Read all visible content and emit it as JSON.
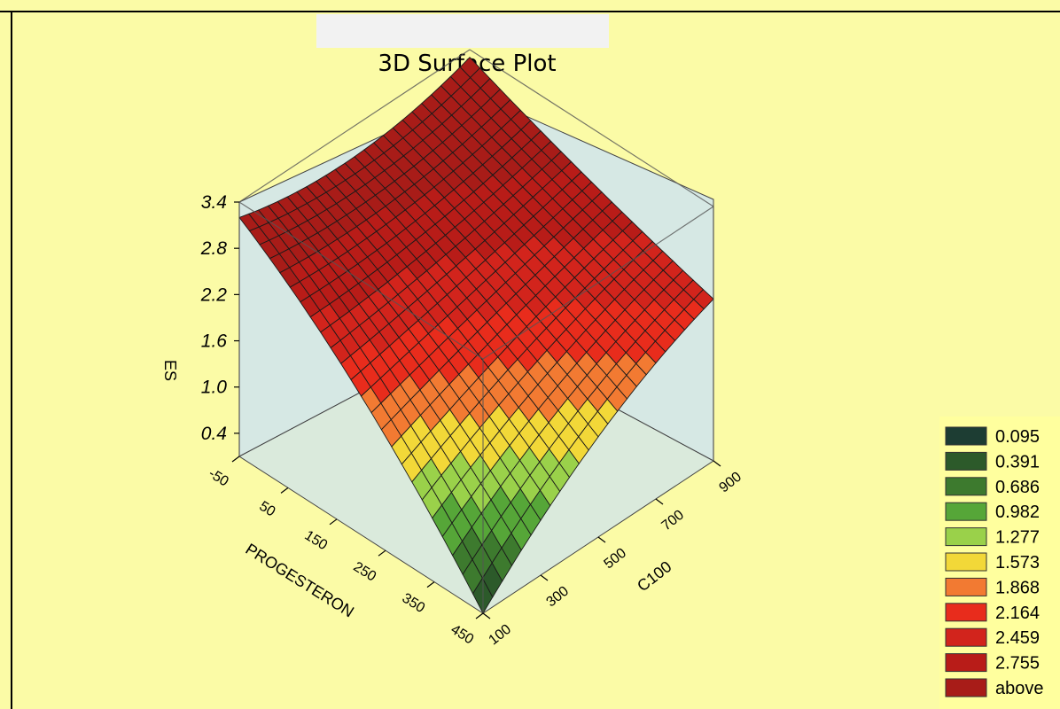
{
  "colors": {
    "background": "#fbfba6",
    "box_face": "#cfe4ee",
    "title_tab": "#f2f2f2",
    "legend_bg": "#ffff9e",
    "grid_line": "#1a1a1a"
  },
  "chart_data": {
    "type": "surface3d",
    "title": "3D Surface Plot",
    "xlabel": "PROGESTERON",
    "ylabel": "C100",
    "zlabel": "ES",
    "x_ticks": [
      "-50",
      "50",
      "150",
      "250",
      "350",
      "450"
    ],
    "y_ticks": [
      "100",
      "300",
      "500",
      "700",
      "900"
    ],
    "z_ticks": [
      "0.4",
      "1.0",
      "1.6",
      "2.2",
      "2.8",
      "3.4"
    ],
    "xlim": [
      -50,
      450
    ],
    "ylim": [
      100,
      900
    ],
    "zlim": [
      0.1,
      3.4
    ],
    "corner_values": [
      {
        "x": -50,
        "y": 100,
        "z": 3.2
      },
      {
        "x": -50,
        "y": 900,
        "z": 3.3
      },
      {
        "x": 450,
        "y": 900,
        "z": 2.2
      },
      {
        "x": 450,
        "y": 100,
        "z": 0.1
      }
    ],
    "mid_edge_values": [
      {
        "x": -50,
        "y": 500,
        "z": 3.0
      },
      {
        "x": 200,
        "y": 900,
        "z": 2.7
      },
      {
        "x": 450,
        "y": 500,
        "z": 1.4
      },
      {
        "x": 200,
        "y": 100,
        "z": 1.9
      }
    ],
    "legend": {
      "entries": [
        "0.095",
        "0.391",
        "0.686",
        "0.982",
        "1.277",
        "1.573",
        "1.868",
        "2.164",
        "2.459",
        "2.755",
        "above"
      ],
      "colors": [
        "#1d3d33",
        "#2c5a2a",
        "#3d7a2e",
        "#56a638",
        "#9ad14a",
        "#f2d838",
        "#f27a32",
        "#e82c1c",
        "#d2241c",
        "#b81c18",
        "#a81c18"
      ]
    }
  }
}
